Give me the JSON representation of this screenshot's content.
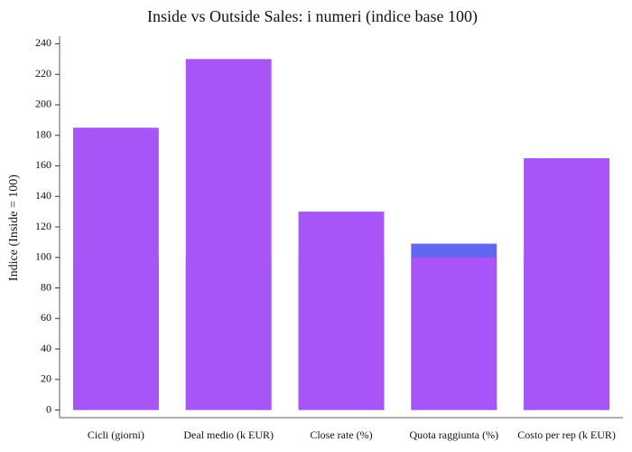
{
  "chart_data": {
    "type": "bar",
    "title": "Inside vs Outside Sales: i numeri (indice base 100)",
    "y_label": "Indice (Inside = 100)",
    "categories": [
      "Cicli (giorni)",
      "Deal medio (k EUR)",
      "Close rate (%)",
      "Quota raggiunta (%)",
      "Costo per rep (k EUR)"
    ],
    "series": [
      {
        "color": "#6366f1",
        "values": [
          100,
          100,
          100,
          109,
          100
        ]
      },
      {
        "color": "#a855f7",
        "values": [
          185,
          230,
          130,
          100,
          165
        ]
      }
    ],
    "ylim": [
      -5,
      245
    ],
    "yticks": [
      0,
      20,
      40,
      60,
      80,
      100,
      120,
      140,
      160,
      180,
      200,
      220,
      240
    ]
  }
}
